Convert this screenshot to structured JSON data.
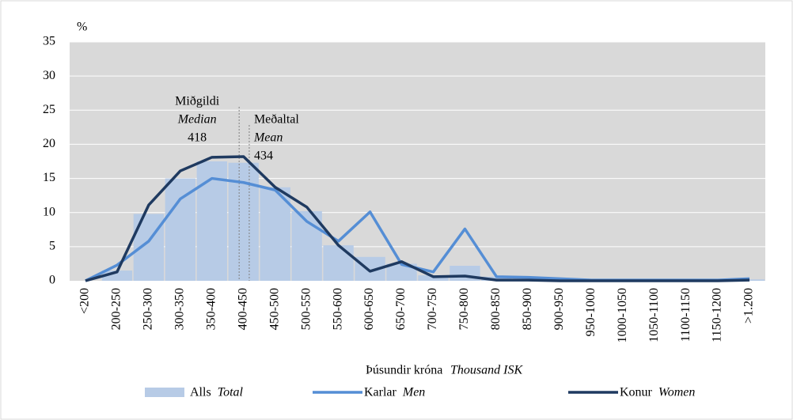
{
  "chart_data": {
    "type": "bar_line",
    "y_unit": "%",
    "x_label": "Þúsundir króna",
    "x_label_en": "Thousand ISK",
    "categories": [
      "<200",
      "200-250",
      "250-300",
      "300-350",
      "350-400",
      "400-450",
      "450-500",
      "500-550",
      "550-600",
      "600-650",
      "650-700",
      "700-750",
      "750-800",
      "800-850",
      "850-900",
      "900-950",
      "950-1000",
      "1000-1050",
      "1050-1100",
      "1100-1150",
      "1150-1200",
      ">1.200"
    ],
    "series": [
      {
        "name": "Alls",
        "name_en": "Total",
        "kind": "bar",
        "color": "#b7cbe6",
        "values": [
          0,
          1.5,
          9.8,
          15,
          17.5,
          17.3,
          13.7,
          10.2,
          5.2,
          3.5,
          2.5,
          0.8,
          2.2,
          0.6,
          0.4,
          0.2,
          0.1,
          0.1,
          0.1,
          0.1,
          0.1,
          0.2
        ]
      },
      {
        "name": "Karlar",
        "name_en": "Men",
        "kind": "line",
        "color": "#558ed5",
        "values": [
          0,
          2.3,
          5.8,
          12,
          15,
          14.4,
          13.3,
          8.7,
          5.8,
          10.1,
          2.4,
          1.3,
          7.6,
          0.6,
          0.5,
          0.3,
          0.1,
          0.1,
          0.1,
          0.1,
          0.1,
          0.3
        ]
      },
      {
        "name": "Konur",
        "name_en": "Women",
        "kind": "line",
        "color": "#1f3a60",
        "values": [
          0,
          1.3,
          11.1,
          16.1,
          18.1,
          18.2,
          13.7,
          10.8,
          5.2,
          1.4,
          2.8,
          0.6,
          0.7,
          0.1,
          0.1,
          0,
          0,
          0,
          0,
          0,
          0,
          0.1
        ]
      }
    ],
    "annotations": [
      {
        "label": "Miðgildi",
        "label_en": "Median",
        "value": 418
      },
      {
        "label": "Meðaltal",
        "label_en": "Mean",
        "value": 434
      }
    ],
    "ylim": [
      0,
      35
    ],
    "yticks": [
      0,
      5,
      10,
      15,
      20,
      25,
      30,
      35
    ],
    "grid": true
  }
}
